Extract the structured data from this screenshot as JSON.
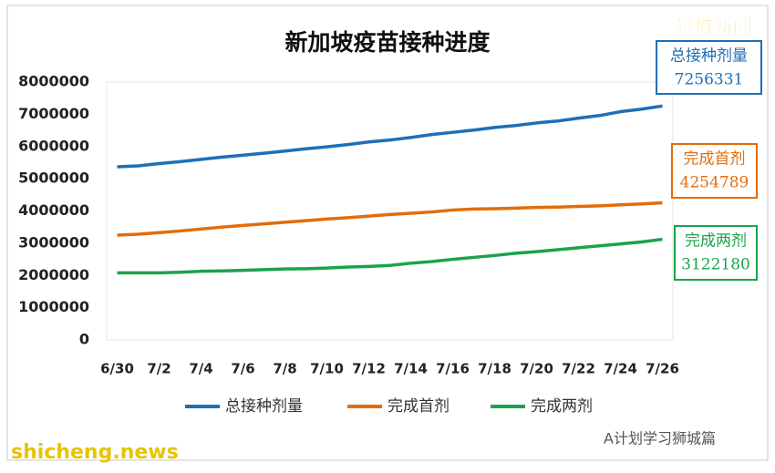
{
  "chart_data": {
    "type": "line",
    "title": "新加坡疫苗接种进度",
    "categories": [
      "6/30",
      null,
      "7/2",
      null,
      "7/4",
      null,
      "7/6",
      null,
      "7/8",
      null,
      "7/10",
      null,
      "7/12",
      null,
      "7/14",
      null,
      "7/16",
      null,
      "7/18",
      null,
      "7/20",
      null,
      "7/22",
      null,
      "7/24",
      null,
      "7/26"
    ],
    "series": [
      {
        "name": "总接种剂量",
        "color": "#1f6fb5",
        "values": [
          5370000,
          5400000,
          5470000,
          5530000,
          5600000,
          5670000,
          5730000,
          5790000,
          5860000,
          5930000,
          5990000,
          6060000,
          6140000,
          6200000,
          6280000,
          6370000,
          6440000,
          6510000,
          6590000,
          6650000,
          6730000,
          6790000,
          6880000,
          6960000,
          7080000,
          7160000,
          7256331
        ]
      },
      {
        "name": "完成首剂",
        "color": "#e46c0a",
        "values": [
          3250000,
          3280000,
          3330000,
          3380000,
          3440000,
          3500000,
          3550000,
          3600000,
          3650000,
          3700000,
          3750000,
          3790000,
          3840000,
          3890000,
          3930000,
          3970000,
          4030000,
          4060000,
          4070000,
          4090000,
          4110000,
          4120000,
          4140000,
          4160000,
          4190000,
          4220000,
          4254789
        ]
      },
      {
        "name": "完成两剂",
        "color": "#1ba34b",
        "values": [
          2080000,
          2080000,
          2080000,
          2100000,
          2130000,
          2140000,
          2160000,
          2180000,
          2200000,
          2210000,
          2230000,
          2260000,
          2280000,
          2310000,
          2380000,
          2430000,
          2500000,
          2560000,
          2620000,
          2690000,
          2740000,
          2800000,
          2860000,
          2920000,
          2980000,
          3040000,
          3122180
        ]
      }
    ],
    "ylim": [
      0,
      8000000
    ],
    "yticks": [
      0,
      1000000,
      2000000,
      3000000,
      4000000,
      5000000,
      6000000,
      7000000,
      8000000
    ],
    "grid": false,
    "legend": "bottom",
    "watermarks": [
      "狮城新闻",
      "shicheng.news",
      "A计划学习狮城篇"
    ]
  }
}
